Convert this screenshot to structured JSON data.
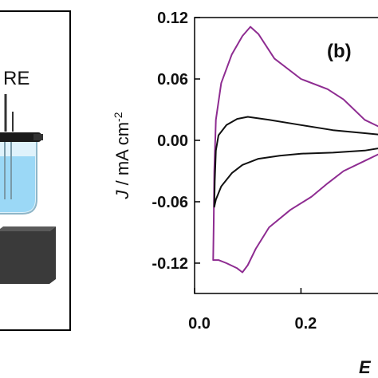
{
  "left_panel": {
    "electrode_label": "RE"
  },
  "chart_data": {
    "type": "line",
    "panel_label": "(b)",
    "ylabel": "J / mA cm-2",
    "ylabel_parts": {
      "italic": "J",
      "rest": " / mA cm",
      "sup": "-2"
    },
    "xlabel_fragment": "E",
    "xlim": [
      0.0,
      0.5
    ],
    "ylim": [
      -0.14,
      0.12
    ],
    "yticks": [
      0.12,
      0.06,
      0.0,
      -0.06,
      -0.12
    ],
    "ytick_labels": [
      "0.12",
      "0.06",
      "0.00",
      "-0.06",
      "-0.12"
    ],
    "xticks": [
      0.0,
      0.2
    ],
    "xtick_labels": [
      "0.0",
      "0.2"
    ],
    "grid": false,
    "series": [
      {
        "color": "#8e2c91",
        "x": [
          0.035,
          0.036,
          0.037,
          0.04,
          0.05,
          0.07,
          0.09,
          0.105,
          0.12,
          0.15,
          0.2,
          0.25,
          0.28,
          0.32,
          0.36,
          0.4,
          0.42,
          0.4,
          0.36,
          0.32,
          0.28,
          0.25,
          0.22,
          0.18,
          0.14,
          0.115,
          0.1,
          0.09,
          0.08,
          0.06,
          0.045,
          0.038,
          0.035
        ],
        "y": [
          -0.117,
          -0.08,
          -0.03,
          0.02,
          0.056,
          0.084,
          0.102,
          0.111,
          0.104,
          0.08,
          0.06,
          0.05,
          0.04,
          0.02,
          0.01,
          0.005,
          0.003,
          -0.005,
          -0.01,
          -0.02,
          -0.03,
          -0.042,
          -0.055,
          -0.068,
          -0.085,
          -0.106,
          -0.122,
          -0.129,
          -0.125,
          -0.12,
          -0.117,
          -0.117,
          -0.117
        ]
      },
      {
        "color": "#111111",
        "x": [
          0.037,
          0.038,
          0.04,
          0.045,
          0.06,
          0.08,
          0.1,
          0.14,
          0.2,
          0.26,
          0.32,
          0.38,
          0.42,
          0.38,
          0.32,
          0.26,
          0.2,
          0.16,
          0.12,
          0.09,
          0.07,
          0.05,
          0.04,
          0.037
        ],
        "y": [
          -0.065,
          -0.04,
          -0.01,
          0.005,
          0.015,
          0.021,
          0.023,
          0.02,
          0.015,
          0.01,
          0.007,
          0.004,
          0.003,
          -0.005,
          -0.01,
          -0.012,
          -0.013,
          -0.015,
          -0.018,
          -0.024,
          -0.032,
          -0.045,
          -0.058,
          -0.065
        ]
      }
    ]
  }
}
